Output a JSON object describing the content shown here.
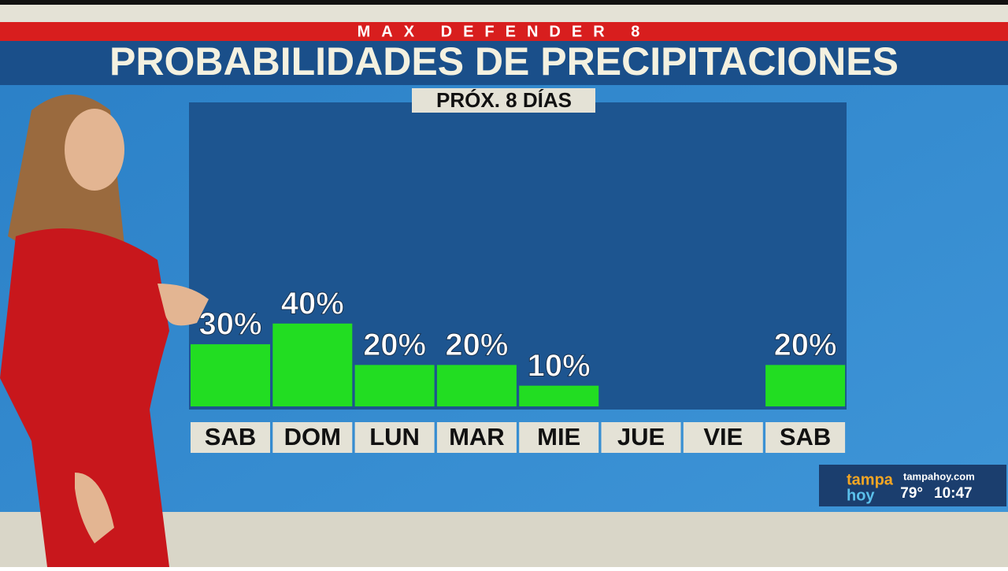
{
  "chart_data": {
    "type": "bar",
    "title": "PROBABILIDADES DE PRECIPITACIONES",
    "subtitle": "PRÓX. 8 DÍAS",
    "categories": [
      "SAB",
      "DOM",
      "LUN",
      "MAR",
      "MIE",
      "JUE",
      "VIE",
      "SAB"
    ],
    "values": [
      30,
      40,
      20,
      20,
      10,
      0,
      0,
      20
    ],
    "value_labels": [
      "30%",
      "40%",
      "20%",
      "20%",
      "10%",
      null,
      null,
      "20%"
    ],
    "color": "#22dd22",
    "ylim": [
      0,
      100
    ]
  },
  "overlay": {
    "brand": "MAX DEFENDER 8",
    "logo_top": "tampa",
    "logo_bottom": "hoy",
    "site": "tampahoy.com",
    "temperature": "79°",
    "time": "10:47"
  }
}
